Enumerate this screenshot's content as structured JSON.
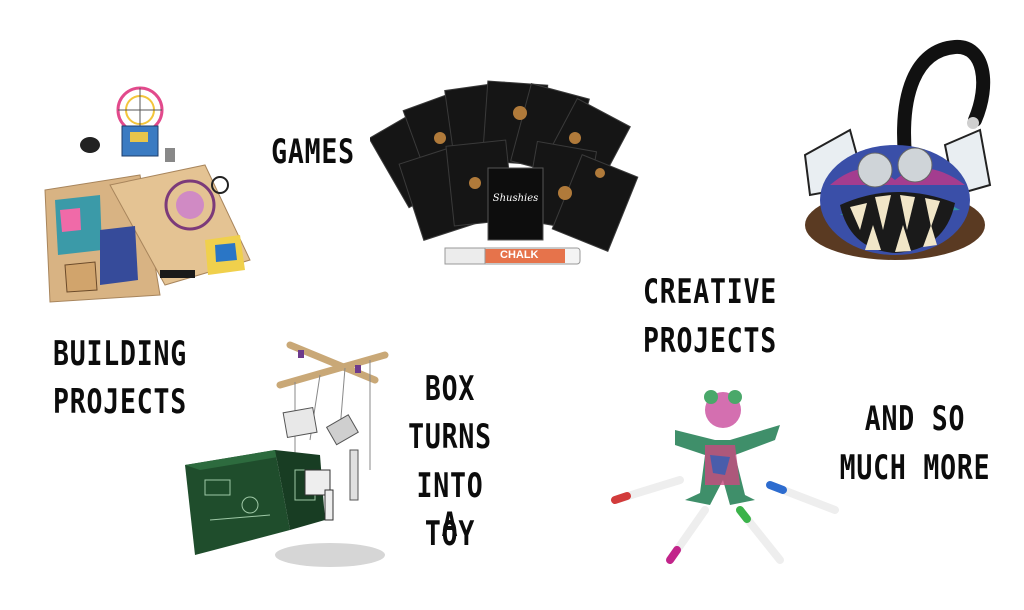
{
  "labels": {
    "games": "GAMES",
    "building_1": "BUILDING",
    "building_2": "PROJECTS",
    "creative_1": "CREATIVE",
    "creative_2": "PROJECTS",
    "box_1": "BOX",
    "box_2": "TURNS",
    "box_3": "INTO A",
    "box_4": "TOY",
    "more_1": "AND SO",
    "more_2": "MUCH MORE"
  },
  "card_game": {
    "box_title": "Shushies",
    "marker_label": "CHALK"
  },
  "colors": {
    "text": "#0c0c0c",
    "cards": "#1a1a1a",
    "box_green": "#1f4d2c",
    "wood": "#d9b98a",
    "fur_black": "#111111"
  }
}
